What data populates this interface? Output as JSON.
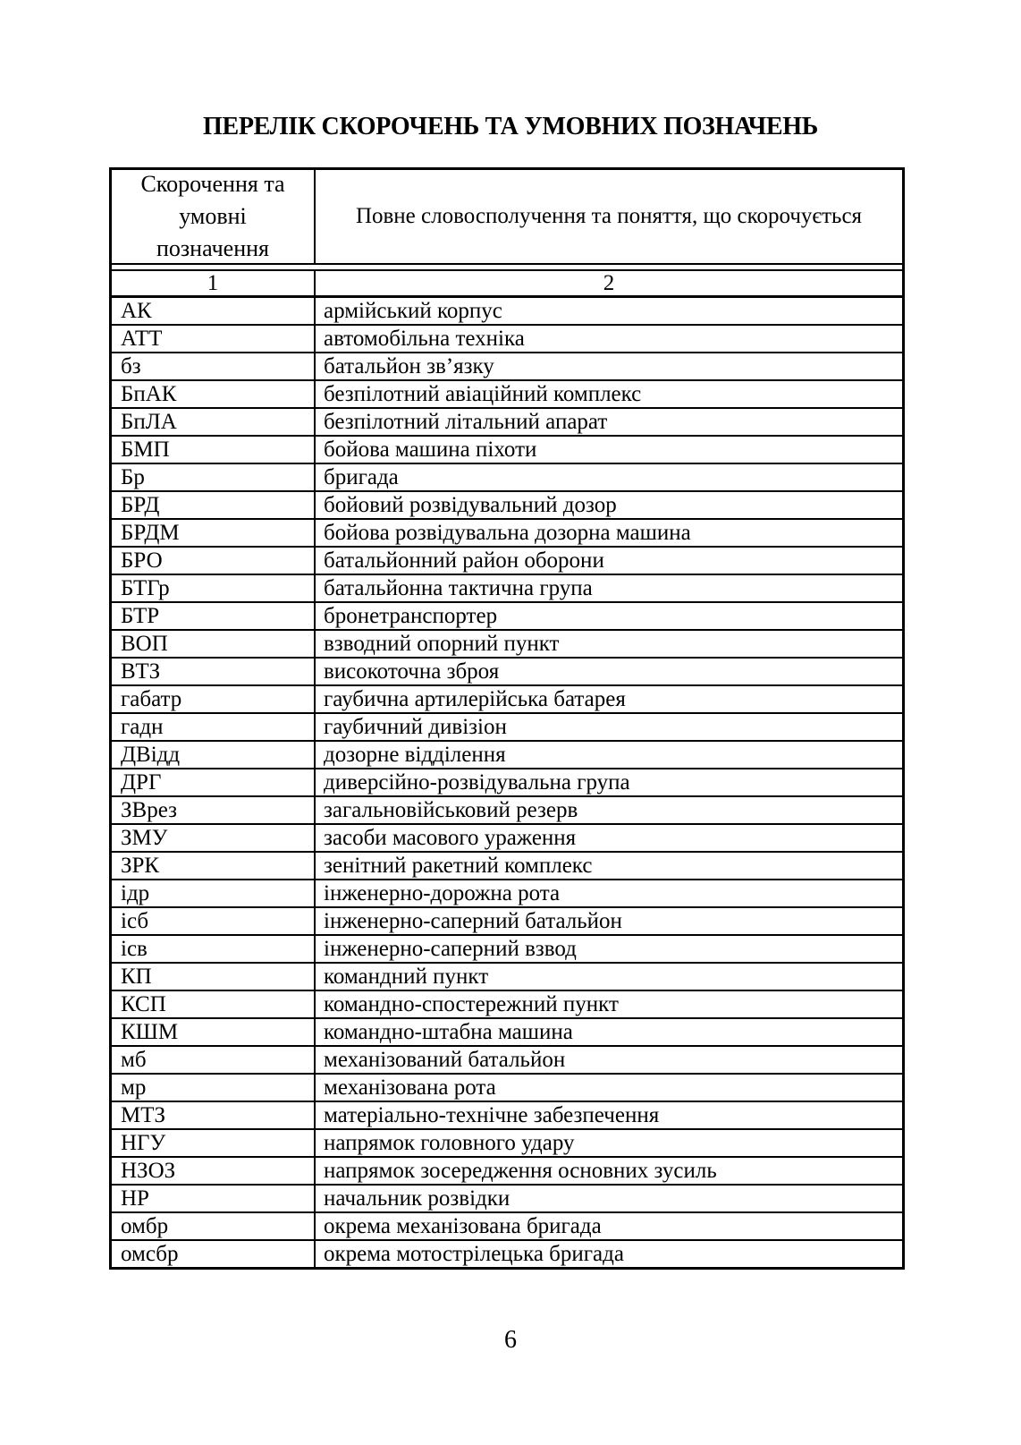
{
  "page": {
    "title": "ПЕРЕЛІК СКОРОЧЕНЬ ТА УМОВНИХ ПОЗНАЧЕНЬ",
    "page_number": "6"
  },
  "table": {
    "header": {
      "col1": "Скорочення та умовні позначення",
      "col2": "Повне словосполучення та поняття, що скорочується"
    },
    "number_row": {
      "col1": "1",
      "col2": "2"
    },
    "rows": [
      {
        "abbr": "АК",
        "full": "армійський корпус"
      },
      {
        "abbr": "АТТ",
        "full": "автомобільна техніка"
      },
      {
        "abbr": "бз",
        "full": "батальйон зв’язку"
      },
      {
        "abbr": "БпАК",
        "full": "безпілотний авіаційний комплекс"
      },
      {
        "abbr": "БпЛА",
        "full": "безпілотний літальний апарат"
      },
      {
        "abbr": "БМП",
        "full": "бойова машина піхоти"
      },
      {
        "abbr": "Бр",
        "full": "бригада"
      },
      {
        "abbr": "БРД",
        "full": "бойовий розвідувальний дозор"
      },
      {
        "abbr": "БРДМ",
        "full": "бойова розвідувальна дозорна машина"
      },
      {
        "abbr": "БРО",
        "full": "батальйонний район оборони"
      },
      {
        "abbr": "БТГр",
        "full": "батальйонна тактична група"
      },
      {
        "abbr": "БТР",
        "full": "бронетранспортер"
      },
      {
        "abbr": "ВОП",
        "full": "взводний опорний пункт"
      },
      {
        "abbr": "ВТЗ",
        "full": "високоточна зброя"
      },
      {
        "abbr": "габатр",
        "full": "гаубична артилерійська батарея"
      },
      {
        "abbr": "гадн",
        "full": "гаубичний дивізіон"
      },
      {
        "abbr": "ДВідд",
        "full": "дозорне відділення"
      },
      {
        "abbr": "ДРГ",
        "full": "диверсійно-розвідувальна група"
      },
      {
        "abbr": "ЗВрез",
        "full": "загальновійськовий резерв"
      },
      {
        "abbr": "ЗМУ",
        "full": "засоби масового ураження"
      },
      {
        "abbr": "ЗРК",
        "full": "зенітний ракетний комплекс"
      },
      {
        "abbr": "ідр",
        "full": "інженерно-дорожна рота"
      },
      {
        "abbr": "ісб",
        "full": "інженерно-саперний батальйон"
      },
      {
        "abbr": "ісв",
        "full": "інженерно-саперний взвод"
      },
      {
        "abbr": "КП",
        "full": "командний пункт"
      },
      {
        "abbr": "КСП",
        "full": "командно-спостережний пункт"
      },
      {
        "abbr": "КШМ",
        "full": "командно-штабна машина"
      },
      {
        "abbr": "мб",
        "full": "механізований батальйон"
      },
      {
        "abbr": "мр",
        "full": "механізована рота"
      },
      {
        "abbr": "МТЗ",
        "full": "матеріально-технічне забезпечення"
      },
      {
        "abbr": "НГУ",
        "full": "напрямок головного удару"
      },
      {
        "abbr": "НЗОЗ",
        "full": "напрямок зосередження основних зусиль"
      },
      {
        "abbr": "НР",
        "full": "начальник розвідки"
      },
      {
        "abbr": "омбр",
        "full": "окрема механізована бригада"
      },
      {
        "abbr": "омсбр",
        "full": "окрема мотострілецька бригада"
      }
    ]
  }
}
